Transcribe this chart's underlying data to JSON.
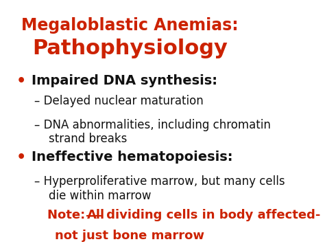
{
  "bg_color": "#ffffff",
  "title_line1": "Megaloblastic Anemias:",
  "title_line2": "Pathophysiology",
  "title_color": "#cc2200",
  "title_line1_fontsize": 17,
  "title_line2_fontsize": 22,
  "bullet_color": "#cc2200",
  "bullet_fontsize": 14,
  "sub_fontsize": 12,
  "note_fontsize": 13,
  "note_color": "#cc2200",
  "content": [
    {
      "type": "bullet",
      "text": "Impaired DNA synthesis:"
    },
    {
      "type": "sub",
      "text": "– Delayed nuclear maturation"
    },
    {
      "type": "sub",
      "text": "– DNA abnormalities, including chromatin\n    strand breaks"
    },
    {
      "type": "bullet",
      "text": "Ineffective hematopoiesis:"
    },
    {
      "type": "sub",
      "text": "– Hyperproliferative marrow, but many cells\n    die within marrow"
    }
  ],
  "note_line1_pre": "Note: ",
  "note_all": "All",
  "note_rest": " dividing cells in body affected-",
  "note_line2": "not just bone marrow"
}
